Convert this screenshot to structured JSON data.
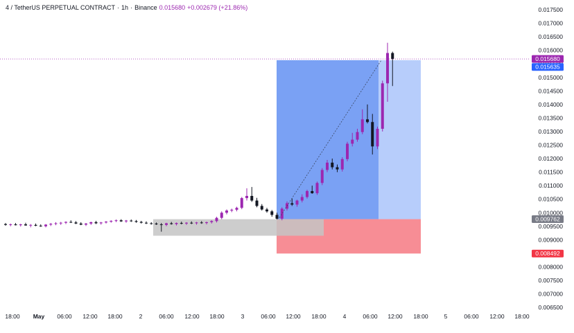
{
  "header": {
    "symbol": "4 / TetherUS PERPETUAL CONTRACT",
    "timeframe": "1h",
    "exchange": "Binance",
    "last_price": "0.015680",
    "change": "+0.002679 (+21.86%)"
  },
  "colors": {
    "bull": "#9c27b0",
    "bear": "#131722",
    "profit_zone": "#4d82f0",
    "profit_zone_light": "#b7cdfb",
    "loss_zone": "#f78d95",
    "gray_zone": "#c4c4c4",
    "last_price_tag": "#9c27b0",
    "entry_tag": "#787b86",
    "stop_tag": "#f23645",
    "target_tag": "#2962ff"
  },
  "price_tags": {
    "last": "0.015680",
    "target": "0.015635",
    "entry": "0.009762",
    "stop": "0.008492"
  },
  "chart_data": {
    "type": "candlestick",
    "yaxis_ticks": [
      "0.017500",
      "0.017000",
      "0.016500",
      "0.016000",
      "0.015500",
      "0.015000",
      "0.014500",
      "0.014000",
      "0.013500",
      "0.013000",
      "0.012500",
      "0.012000",
      "0.011500",
      "0.011000",
      "0.010500",
      "0.010000",
      "0.009500",
      "0.009000",
      "0.008500",
      "0.008000",
      "0.007500",
      "0.007000",
      "0.006500"
    ],
    "ylim": [
      0.0063,
      0.0178
    ],
    "xaxis_ticks": [
      "18:00",
      "May",
      "06:00",
      "12:00",
      "18:00",
      "2",
      "06:00",
      "12:00",
      "18:00",
      "3",
      "06:00",
      "12:00",
      "18:00",
      "4",
      "06:00",
      "12:00",
      "18:00",
      "5",
      "06:00",
      "12:00",
      "18:00"
    ],
    "position": {
      "entry": 0.009762,
      "stop": 0.008492,
      "target": 0.015635
    },
    "range_box": {
      "top": 0.00976,
      "bottom": 0.00915
    },
    "candles": [
      [
        0.00958,
        0.00962,
        0.00952,
        0.00955
      ],
      [
        0.00955,
        0.0096,
        0.0095,
        0.00957
      ],
      [
        0.00957,
        0.00962,
        0.00953,
        0.00954
      ],
      [
        0.00954,
        0.00959,
        0.00949,
        0.00957
      ],
      [
        0.00957,
        0.00963,
        0.00952,
        0.00953
      ],
      [
        0.00953,
        0.00958,
        0.00946,
        0.00955
      ],
      [
        0.00955,
        0.0096,
        0.0095,
        0.00952
      ],
      [
        0.00952,
        0.00957,
        0.00948,
        0.0095
      ],
      [
        0.0095,
        0.00958,
        0.00946,
        0.00956
      ],
      [
        0.00956,
        0.00962,
        0.00951,
        0.00959
      ],
      [
        0.00959,
        0.00965,
        0.00954,
        0.00961
      ],
      [
        0.00961,
        0.00966,
        0.00955,
        0.00963
      ],
      [
        0.00963,
        0.00968,
        0.00958,
        0.00966
      ],
      [
        0.00966,
        0.00972,
        0.00962,
        0.00964
      ],
      [
        0.00964,
        0.00969,
        0.00958,
        0.0096
      ],
      [
        0.0096,
        0.00965,
        0.00954,
        0.00956
      ],
      [
        0.00956,
        0.00962,
        0.00951,
        0.0096
      ],
      [
        0.0096,
        0.00967,
        0.00955,
        0.00965
      ],
      [
        0.00965,
        0.0097,
        0.00958,
        0.00961
      ],
      [
        0.00961,
        0.00966,
        0.00956,
        0.00964
      ],
      [
        0.00964,
        0.00969,
        0.0096,
        0.00967
      ],
      [
        0.00967,
        0.00972,
        0.00963,
        0.0097
      ],
      [
        0.0097,
        0.00975,
        0.00965,
        0.00972
      ],
      [
        0.00972,
        0.00976,
        0.00966,
        0.00968
      ],
      [
        0.00968,
        0.00973,
        0.00963,
        0.00971
      ],
      [
        0.00971,
        0.00975,
        0.00966,
        0.00969
      ],
      [
        0.00969,
        0.00973,
        0.00963,
        0.00966
      ],
      [
        0.00966,
        0.0097,
        0.0096,
        0.00963
      ],
      [
        0.00963,
        0.00968,
        0.00958,
        0.00961
      ],
      [
        0.00961,
        0.00965,
        0.00956,
        0.0096
      ],
      [
        0.0096,
        0.00964,
        0.00955,
        0.00957
      ],
      [
        0.00957,
        0.00962,
        0.0093,
        0.00955
      ],
      [
        0.00955,
        0.00963,
        0.0095,
        0.00961
      ],
      [
        0.00961,
        0.00966,
        0.00956,
        0.00958
      ],
      [
        0.00958,
        0.00964,
        0.00953,
        0.00962
      ],
      [
        0.00962,
        0.00967,
        0.00957,
        0.0096
      ],
      [
        0.0096,
        0.00965,
        0.00955,
        0.00963
      ],
      [
        0.00963,
        0.00968,
        0.00958,
        0.00961
      ],
      [
        0.00961,
        0.00966,
        0.00956,
        0.00964
      ],
      [
        0.00964,
        0.00969,
        0.00959,
        0.00962
      ],
      [
        0.00962,
        0.00967,
        0.00957,
        0.00965
      ],
      [
        0.00965,
        0.00972,
        0.0096,
        0.00969
      ],
      [
        0.00969,
        0.00985,
        0.00964,
        0.00981
      ],
      [
        0.00981,
        0.01005,
        0.00976,
        0.01
      ],
      [
        0.01,
        0.01012,
        0.00994,
        0.01008
      ],
      [
        0.01008,
        0.01015,
        0.01002,
        0.01011
      ],
      [
        0.01011,
        0.01022,
        0.01005,
        0.01018
      ],
      [
        0.01018,
        0.01058,
        0.01013,
        0.01054
      ],
      [
        0.01054,
        0.0109,
        0.01045,
        0.01062
      ],
      [
        0.01062,
        0.01095,
        0.0104,
        0.01045
      ],
      [
        0.01045,
        0.01055,
        0.0102,
        0.01025
      ],
      [
        0.01025,
        0.01032,
        0.01008,
        0.01012
      ],
      [
        0.01012,
        0.01018,
        0.01,
        0.01005
      ],
      [
        0.01005,
        0.0101,
        0.00985,
        0.00992
      ],
      [
        0.00992,
        0.01,
        0.00975,
        0.00978
      ],
      [
        0.00978,
        0.0102,
        0.00972,
        0.01015
      ],
      [
        0.01015,
        0.01042,
        0.01008,
        0.01035
      ],
      [
        0.01035,
        0.01052,
        0.01025,
        0.0103
      ],
      [
        0.0103,
        0.01048,
        0.01022,
        0.01045
      ],
      [
        0.01045,
        0.01068,
        0.01038,
        0.01058
      ],
      [
        0.01058,
        0.01085,
        0.01052,
        0.0108
      ],
      [
        0.0108,
        0.011,
        0.0107,
        0.01072
      ],
      [
        0.01072,
        0.01115,
        0.01066,
        0.0111
      ],
      [
        0.0111,
        0.01165,
        0.01102,
        0.01158
      ],
      [
        0.01158,
        0.01195,
        0.0115,
        0.01185
      ],
      [
        0.01185,
        0.012,
        0.0116,
        0.01168
      ],
      [
        0.01168,
        0.01178,
        0.0115,
        0.0116
      ],
      [
        0.0116,
        0.01205,
        0.01152,
        0.01198
      ],
      [
        0.01198,
        0.01262,
        0.0119,
        0.01255
      ],
      [
        0.01255,
        0.01295,
        0.01245,
        0.0127
      ],
      [
        0.0127,
        0.0131,
        0.01262,
        0.01298
      ],
      [
        0.01298,
        0.01382,
        0.0129,
        0.01345
      ],
      [
        0.01345,
        0.014,
        0.0133,
        0.01335
      ],
      [
        0.01335,
        0.01365,
        0.01215,
        0.01245
      ],
      [
        0.01245,
        0.01318,
        0.01235,
        0.0131
      ],
      [
        0.0131,
        0.01488,
        0.013,
        0.01478
      ],
      [
        0.01478,
        0.01628,
        0.0141,
        0.0159
      ],
      [
        0.0159,
        0.01595,
        0.01468,
        0.01568
      ]
    ]
  },
  "x_labels": [
    {
      "text": "18:00",
      "bold": false
    },
    {
      "text": "May",
      "bold": true
    },
    {
      "text": "06:00",
      "bold": false
    },
    {
      "text": "12:00",
      "bold": false
    },
    {
      "text": "18:00",
      "bold": false
    },
    {
      "text": "2",
      "bold": false
    },
    {
      "text": "06:00",
      "bold": false
    },
    {
      "text": "12:00",
      "bold": false
    },
    {
      "text": "18:00",
      "bold": false
    },
    {
      "text": "3",
      "bold": false
    },
    {
      "text": "06:00",
      "bold": false
    },
    {
      "text": "12:00",
      "bold": false
    },
    {
      "text": "18:00",
      "bold": false
    },
    {
      "text": "4",
      "bold": false
    },
    {
      "text": "06:00",
      "bold": false
    },
    {
      "text": "12:00",
      "bold": false
    },
    {
      "text": "18:00",
      "bold": false
    },
    {
      "text": "5",
      "bold": false
    },
    {
      "text": "06:00",
      "bold": false
    },
    {
      "text": "12:00",
      "bold": false
    },
    {
      "text": "18:00",
      "bold": false
    }
  ]
}
